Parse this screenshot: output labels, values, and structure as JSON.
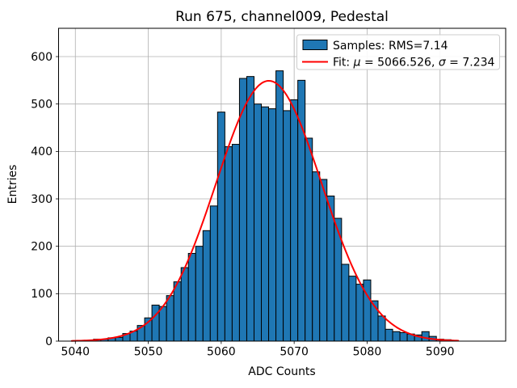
{
  "chart_data": {
    "type": "bar",
    "subtype": "histogram",
    "title": "Run 675, channel009, Pedestal",
    "xlabel": "ADC Counts",
    "ylabel": "Entries",
    "bin_start": 5042.5,
    "bin_width": 1,
    "counts": [
      4,
      4,
      7,
      8,
      16,
      21,
      33,
      49,
      76,
      73,
      96,
      125,
      155,
      185,
      200,
      233,
      285,
      483,
      410,
      415,
      554,
      558,
      500,
      494,
      490,
      570,
      486,
      509,
      550,
      428,
      357,
      341,
      306,
      259,
      162,
      137,
      120,
      129,
      85,
      53,
      25,
      20,
      18,
      15,
      13,
      20,
      10,
      4,
      3
    ],
    "fit": {
      "mu": 5066.526,
      "sigma": 7.234,
      "amplitude": 549,
      "x_min": 5039.5,
      "x_max": 5092.5
    },
    "x_ticks": [
      5040,
      5050,
      5060,
      5070,
      5080,
      5090
    ],
    "y_ticks": [
      0,
      100,
      200,
      300,
      400,
      500,
      600
    ],
    "xlim": [
      5037.7,
      5099.0
    ],
    "ylim": [
      0,
      659.7
    ],
    "grid": true,
    "legend_position": "upper right",
    "legend": {
      "samples_label": "Samples: RMS=7.14",
      "fit_label_parts": [
        "Fit: ",
        "μ",
        " = 5066.526, ",
        "σ",
        " = 7.234"
      ]
    },
    "colors": {
      "bar_fill": "#1f77b4",
      "bar_edge": "#000000",
      "fit_line": "#ff0000",
      "grid": "#b0b0b0",
      "spine": "#000000",
      "legend_border": "#cccccc"
    }
  }
}
